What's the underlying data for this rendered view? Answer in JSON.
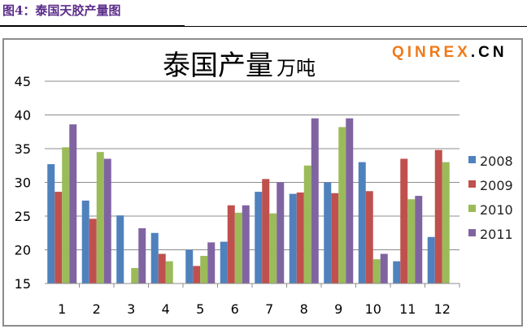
{
  "caption": "图4：泰国天胶产量图",
  "watermark": {
    "main": "QINREX",
    "suffix": ".CN"
  },
  "chart_data": {
    "type": "bar",
    "title": "泰国产量",
    "title_unit": "万吨",
    "categories": [
      "1",
      "2",
      "3",
      "4",
      "5",
      "6",
      "7",
      "8",
      "9",
      "10",
      "11",
      "12"
    ],
    "ylim": [
      15,
      45
    ],
    "yticks": [
      "15",
      "20",
      "25",
      "30",
      "35",
      "40",
      "45"
    ],
    "grid": true,
    "legend_position": "bottom-center",
    "series": [
      {
        "name": "2008",
        "color": "#4f81bd",
        "values": [
          32.7,
          27.3,
          25.1,
          22.5,
          20.0,
          21.2,
          28.6,
          28.3,
          30.0,
          33.0,
          18.3,
          21.9
        ]
      },
      {
        "name": "2009",
        "color": "#c0504d",
        "values": [
          28.6,
          24.6,
          null,
          19.4,
          17.6,
          26.6,
          30.5,
          28.5,
          28.4,
          28.7,
          33.5,
          34.8
        ]
      },
      {
        "name": "2010",
        "color": "#9bbb59",
        "values": [
          35.2,
          34.5,
          17.3,
          18.3,
          19.1,
          25.5,
          25.4,
          32.5,
          38.2,
          18.6,
          27.5,
          33.0
        ]
      },
      {
        "name": "2011",
        "color": "#8064a2",
        "values": [
          38.6,
          33.5,
          23.2,
          null,
          21.1,
          26.6,
          30.0,
          39.5,
          39.5,
          19.4,
          28.0,
          null
        ]
      }
    ]
  }
}
